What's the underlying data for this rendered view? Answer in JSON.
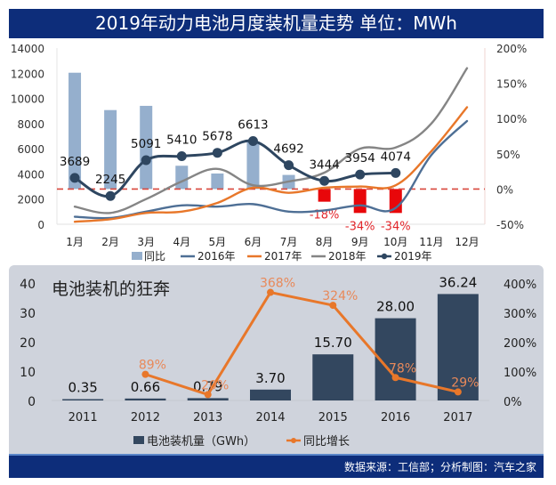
{
  "header": {
    "title": "2019年动力电池月度装机量走势  单位：MWh"
  },
  "footer": {
    "source": "数据来源：工信部；分析制图：汽车之家"
  },
  "colors": {
    "banner": "#0d2d7a",
    "yoy_bar": "#95afcd",
    "yoy_bar_negative": "#e8070a",
    "s2016": "#4e6f95",
    "s2017": "#e8772a",
    "s2018": "#858585",
    "s2019": "#2e4660",
    "zero_line": "#d9473c",
    "annual_bar": "#33475f",
    "annual_line": "#e8772a"
  },
  "chart_data": [
    {
      "type": "bar+line",
      "title": "2019年动力电池月度装机量走势  单位：MWh",
      "categories": [
        "1月",
        "2月",
        "3月",
        "4月",
        "5月",
        "6月",
        "7月",
        "8月",
        "9月",
        "10月",
        "11月",
        "12月"
      ],
      "y_left": {
        "min": 0,
        "max": 14000,
        "ticks": [
          "0",
          "2000",
          "4000",
          "6000",
          "8000",
          "10000",
          "12000",
          "14000"
        ]
      },
      "y_right": {
        "min": -50,
        "max": 200,
        "ticks": [
          "-50%",
          "0%",
          "50%",
          "100%",
          "150%",
          "200%"
        ]
      },
      "series": [
        {
          "name": "同比",
          "type": "bar",
          "axis": "right",
          "values": [
            165,
            112,
            118,
            33,
            22,
            67,
            20,
            -18,
            -34,
            -34,
            null,
            null
          ],
          "labels": [
            "",
            "",
            "",
            "",
            "",
            "",
            "",
            "-18%",
            "-34%",
            "-34%",
            "",
            ""
          ]
        },
        {
          "name": "2016年",
          "type": "line",
          "axis": "left",
          "values": [
            600,
            500,
            1000,
            1500,
            1400,
            1600,
            1000,
            1100,
            1500,
            1300,
            5500,
            8200
          ]
        },
        {
          "name": "2017年",
          "type": "line",
          "axis": "left",
          "values": [
            200,
            400,
            900,
            1000,
            1700,
            2900,
            2500,
            2900,
            3000,
            3100,
            5800,
            9300
          ]
        },
        {
          "name": "2018年",
          "type": "line",
          "axis": "left",
          "values": [
            1400,
            900,
            2000,
            3400,
            4400,
            3100,
            3400,
            4100,
            6000,
            6100,
            8000,
            12400
          ]
        },
        {
          "name": "2019年",
          "type": "line",
          "axis": "left",
          "markers": true,
          "values": [
            3689,
            2245,
            5091,
            5410,
            5678,
            6613,
            4692,
            3444,
            3954,
            4074,
            null,
            null
          ],
          "labels": [
            "3689",
            "2245",
            "5091",
            "5410",
            "5678",
            "6613",
            "4692",
            "3444",
            "3954",
            "4074",
            "",
            ""
          ]
        }
      ],
      "reference_line": {
        "axis": "right",
        "value": 0,
        "style": "dashed"
      },
      "legend": {
        "position": "bottom",
        "entries": [
          "同比",
          "2016年",
          "2017年",
          "2018年",
          "2019年"
        ]
      }
    },
    {
      "type": "bar+line",
      "title": "电池装机的狂奔",
      "categories": [
        "2011",
        "2012",
        "2013",
        "2014",
        "2015",
        "2016",
        "2017"
      ],
      "y_left": {
        "min": 0,
        "max": 40,
        "ticks": [
          "0",
          "10",
          "20",
          "30",
          "40"
        ]
      },
      "y_right": {
        "min": 0,
        "max": 400,
        "ticks": [
          "0%",
          "100%",
          "200%",
          "300%",
          "400%"
        ]
      },
      "series": [
        {
          "name": "电池装机量（GWh）",
          "type": "bar",
          "axis": "left",
          "values": [
            0.35,
            0.66,
            0.79,
            3.7,
            15.7,
            28.0,
            36.24
          ],
          "labels": [
            "0.35",
            "0.66",
            "0.79",
            "3.70",
            "15.70",
            "28.00",
            "36.24"
          ]
        },
        {
          "name": "同比增长",
          "type": "line",
          "axis": "right",
          "values": [
            null,
            89,
            20,
            368,
            324,
            78,
            29
          ],
          "labels": [
            "",
            "89%",
            "20%",
            "368%",
            "324%",
            "78%",
            "29%"
          ]
        }
      ],
      "legend": {
        "position": "bottom",
        "entries": [
          "电池装机量（GWh）",
          "同比增长"
        ]
      }
    }
  ]
}
